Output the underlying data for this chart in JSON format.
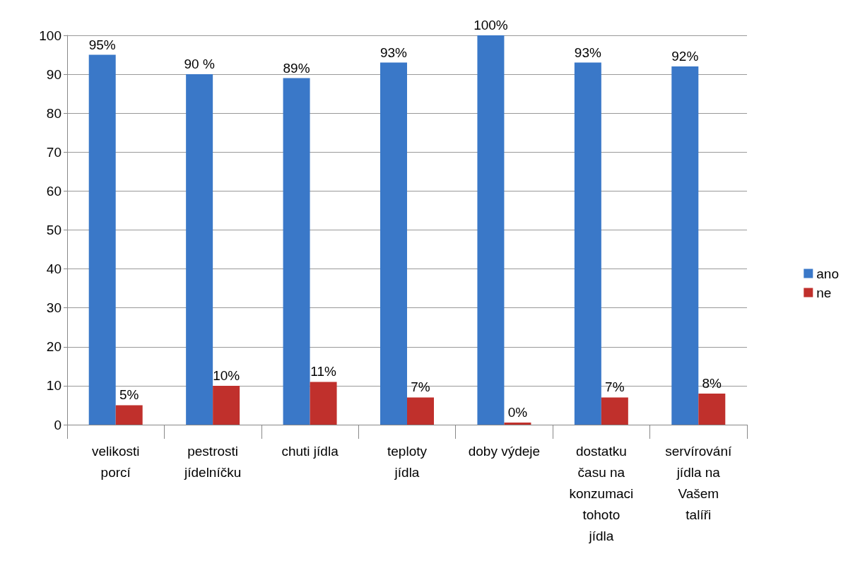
{
  "chart_data": {
    "type": "bar",
    "categories": [
      "velikosti porcí",
      "pestrosti jídelníčku",
      "chuti jídla",
      "teploty jídla",
      "doby výdeje",
      "dostatku času na konzumaci tohoto jídla",
      "servírování jídla na Vašem talíři"
    ],
    "series": [
      {
        "name": "ano",
        "color": "#3a78c8",
        "values": [
          95,
          90,
          89,
          93,
          100,
          93,
          92
        ],
        "value_labels": [
          "95%",
          "90 %",
          "89%",
          "93%",
          "100%",
          "93%",
          "92%"
        ]
      },
      {
        "name": "ne",
        "color": "#c0302c",
        "values": [
          5,
          10,
          11,
          7,
          0,
          7,
          8
        ],
        "value_labels": [
          "5%",
          "10%",
          "11%",
          "7%",
          "0%",
          "7%",
          "8%"
        ]
      }
    ],
    "ylim": [
      0,
      100
    ],
    "yticks": [
      0,
      10,
      20,
      30,
      40,
      50,
      60,
      70,
      80,
      90,
      100
    ],
    "grid": "y",
    "legend": "right"
  }
}
